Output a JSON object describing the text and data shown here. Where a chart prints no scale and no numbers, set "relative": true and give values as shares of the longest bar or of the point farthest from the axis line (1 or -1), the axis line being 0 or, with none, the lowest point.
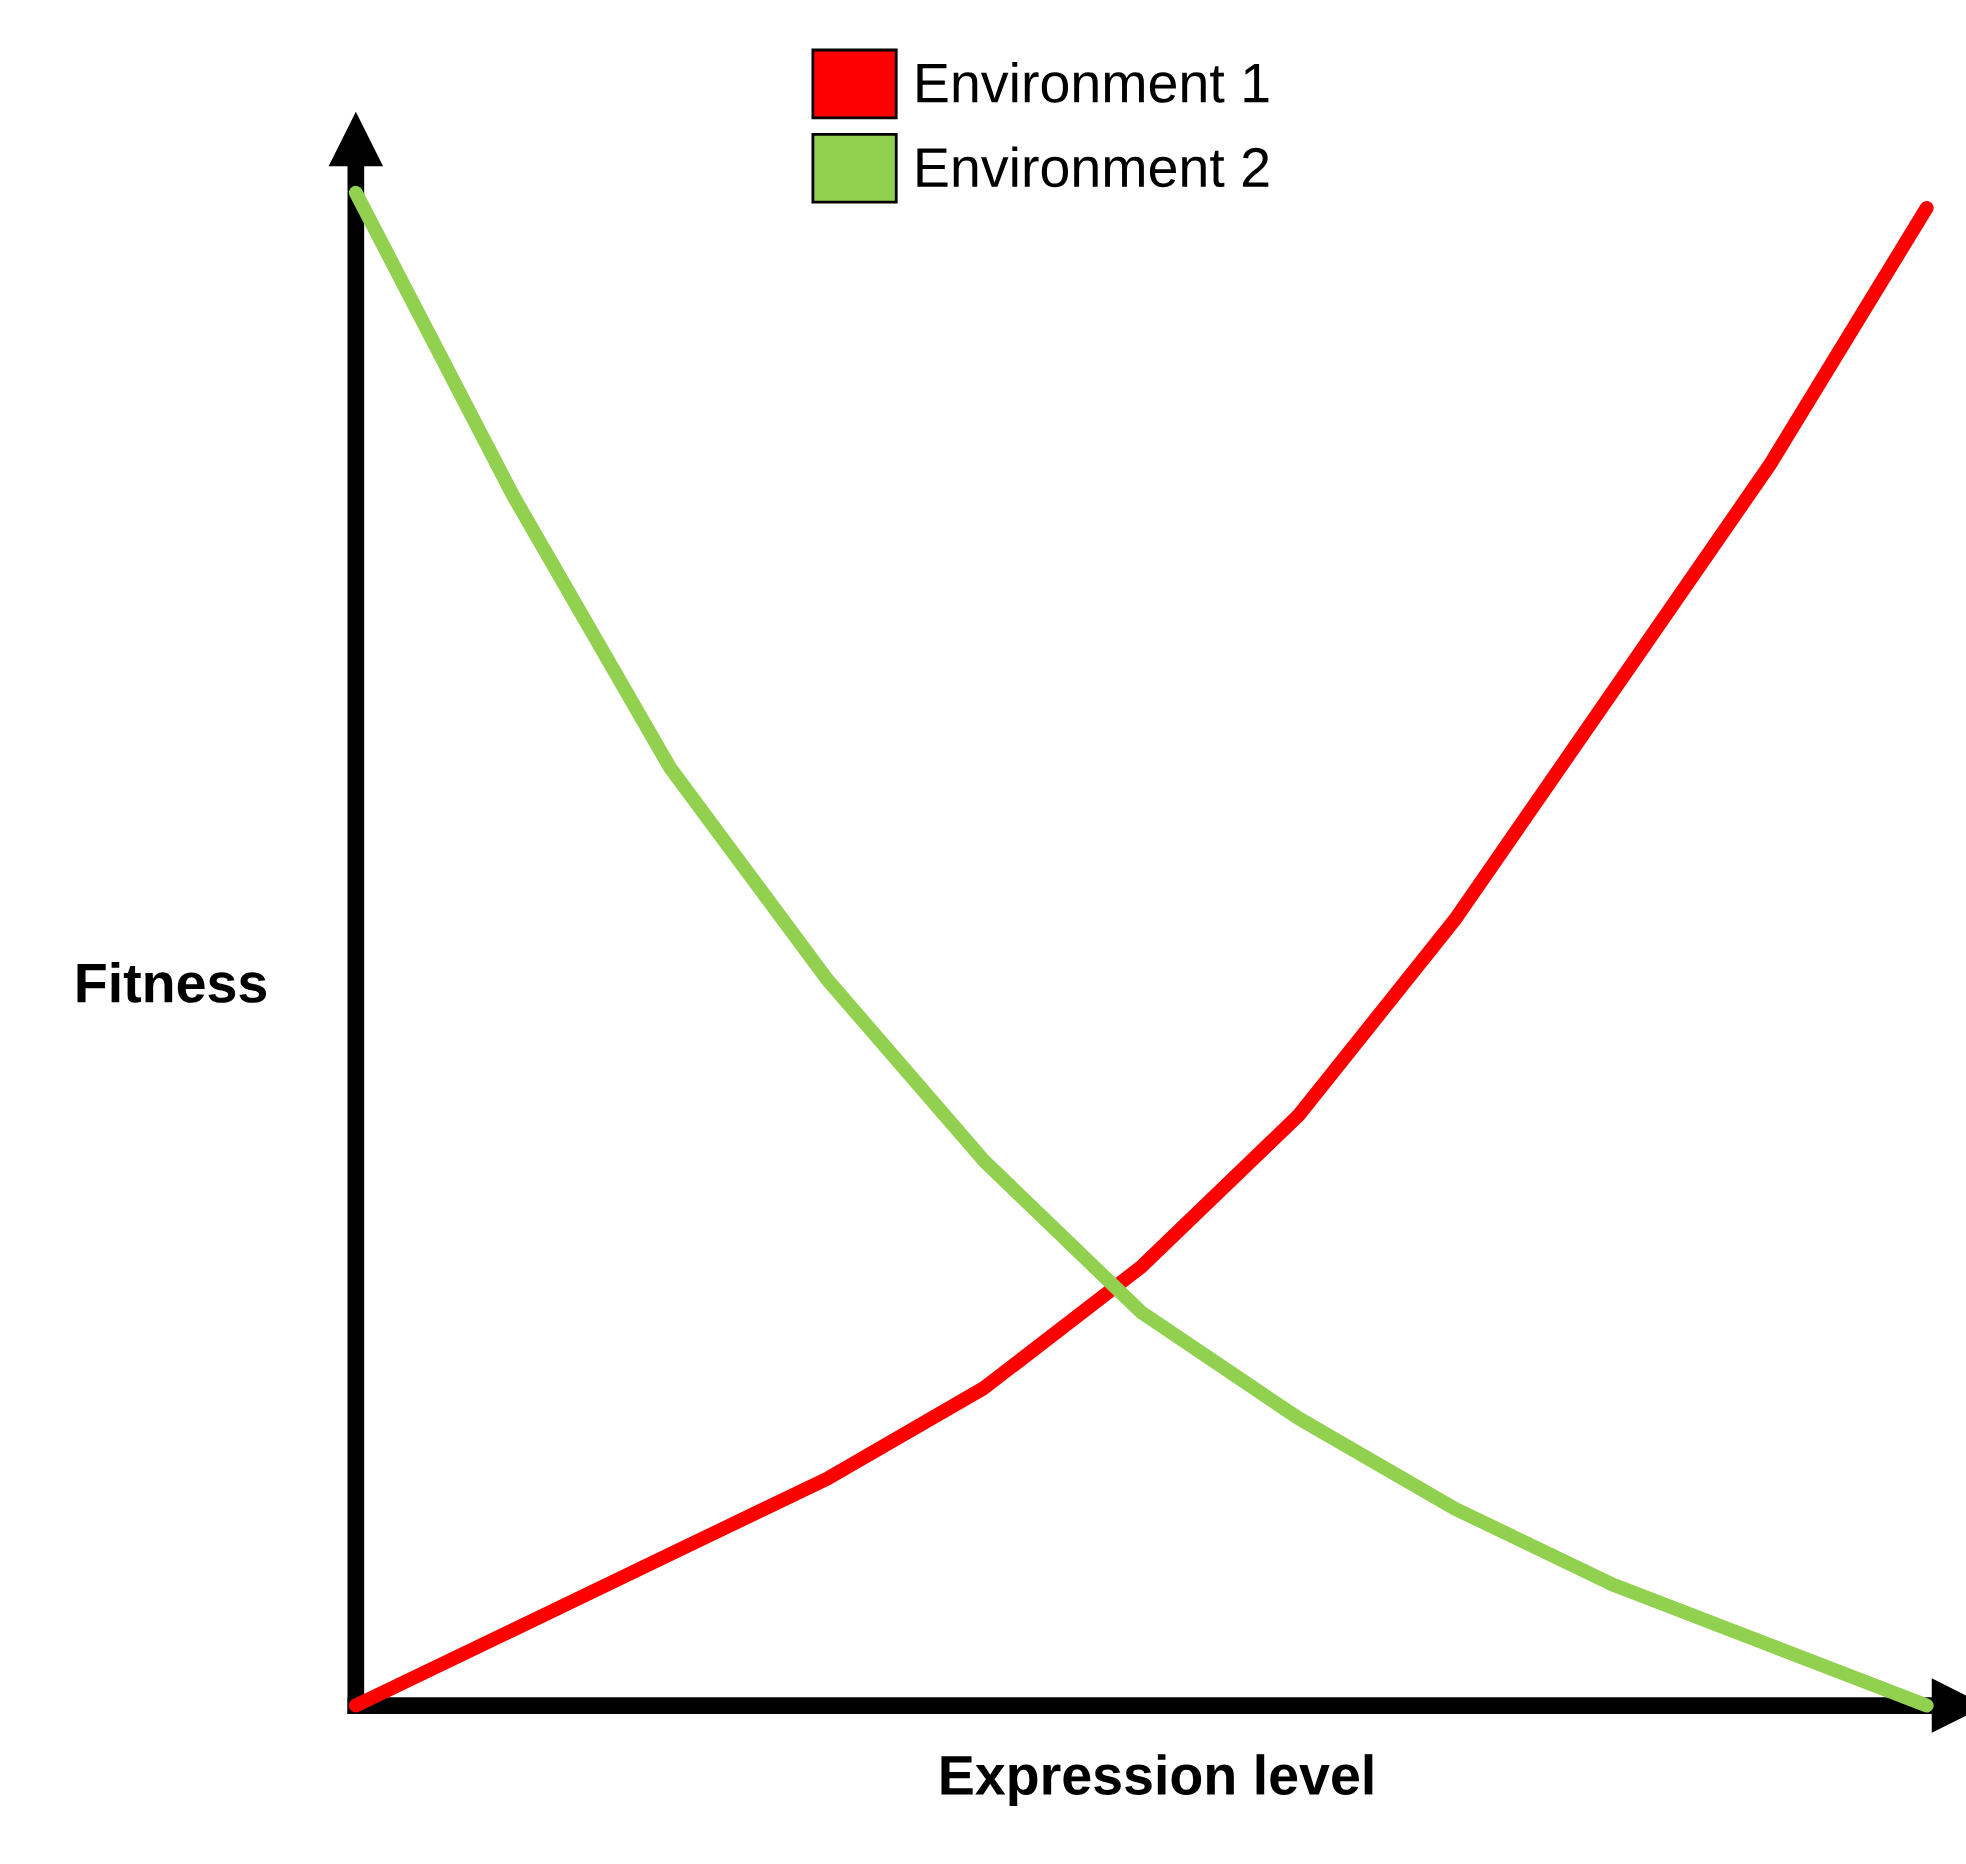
{
  "chart_data": {
    "type": "line",
    "relative": true,
    "xlabel": "Expression level",
    "ylabel": "Fitness",
    "legend": "top",
    "grid": false,
    "marker": "none",
    "line_style": "solid",
    "categories": [
      null,
      null,
      null,
      null,
      null,
      null,
      null,
      null,
      null,
      null,
      null
    ],
    "series": [
      {
        "name": "Environment 1",
        "color": "#ff0000",
        "values": [
          0,
          0.05,
          0.1,
          0.15,
          0.21,
          0.29,
          0.39,
          0.52,
          0.67,
          0.82,
          0.99
        ]
      },
      {
        "name": "Environment 2",
        "color": "#92d050",
        "values": [
          1,
          0.8,
          0.62,
          0.48,
          0.36,
          0.26,
          0.19,
          0.13,
          0.08,
          0.04,
          0
        ]
      }
    ]
  }
}
